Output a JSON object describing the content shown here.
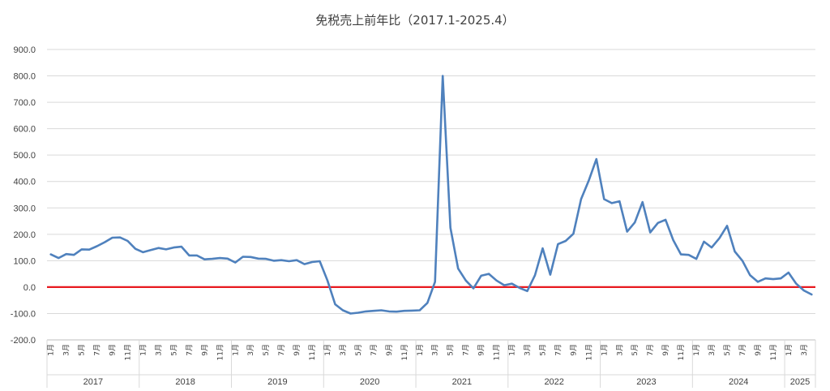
{
  "chart_data": {
    "type": "line",
    "title": "免税売上前年比（2017.1-2025.4）",
    "xlabel": "",
    "ylabel": "",
    "ylim": [
      -200,
      900
    ],
    "yticks": [
      -200,
      -100,
      0,
      100,
      200,
      300,
      400,
      500,
      600,
      700,
      800,
      900
    ],
    "ytick_labels": [
      "-200.0",
      "-100.0",
      "0.0",
      "100.0",
      "200.0",
      "300.0",
      "400.0",
      "500.0",
      "600.0",
      "700.0",
      "800.0",
      "900.0"
    ],
    "grid": true,
    "legend": "none",
    "years": [
      {
        "label": "2017",
        "months": 12
      },
      {
        "label": "2018",
        "months": 12
      },
      {
        "label": "2019",
        "months": 12
      },
      {
        "label": "2020",
        "months": 12
      },
      {
        "label": "2021",
        "months": 12
      },
      {
        "label": "2022",
        "months": 12
      },
      {
        "label": "2023",
        "months": 12
      },
      {
        "label": "2024",
        "months": 12
      },
      {
        "label": "2025",
        "months": 4
      }
    ],
    "month_labels": [
      "1月",
      "3月",
      "5月",
      "7月",
      "9月",
      "11月"
    ],
    "reference_line": {
      "y": 0,
      "color": "#e8191f"
    },
    "series": [
      {
        "color": "#4f81bd",
        "values": [
          124,
          110,
          125,
          122,
          143,
          142,
          155,
          170,
          187,
          188,
          175,
          145,
          132,
          140,
          148,
          143,
          150,
          153,
          120,
          120,
          105,
          107,
          110,
          108,
          93,
          115,
          114,
          108,
          107,
          100,
          102,
          98,
          102,
          87,
          95,
          98,
          25,
          -65,
          -88,
          -100,
          -97,
          -92,
          -90,
          -88,
          -92,
          -93,
          -90,
          -89,
          -88,
          -60,
          20,
          800,
          225,
          70,
          25,
          -5,
          43,
          50,
          25,
          7,
          13,
          -3,
          -15,
          45,
          147,
          47,
          163,
          175,
          202,
          333,
          403,
          485,
          333,
          318,
          325,
          210,
          245,
          322,
          207,
          243,
          255,
          178,
          124,
          122,
          107,
          172,
          150,
          185,
          232,
          135,
          100,
          45,
          20,
          33,
          30,
          33,
          55,
          13,
          -13,
          -28
        ]
      }
    ]
  }
}
